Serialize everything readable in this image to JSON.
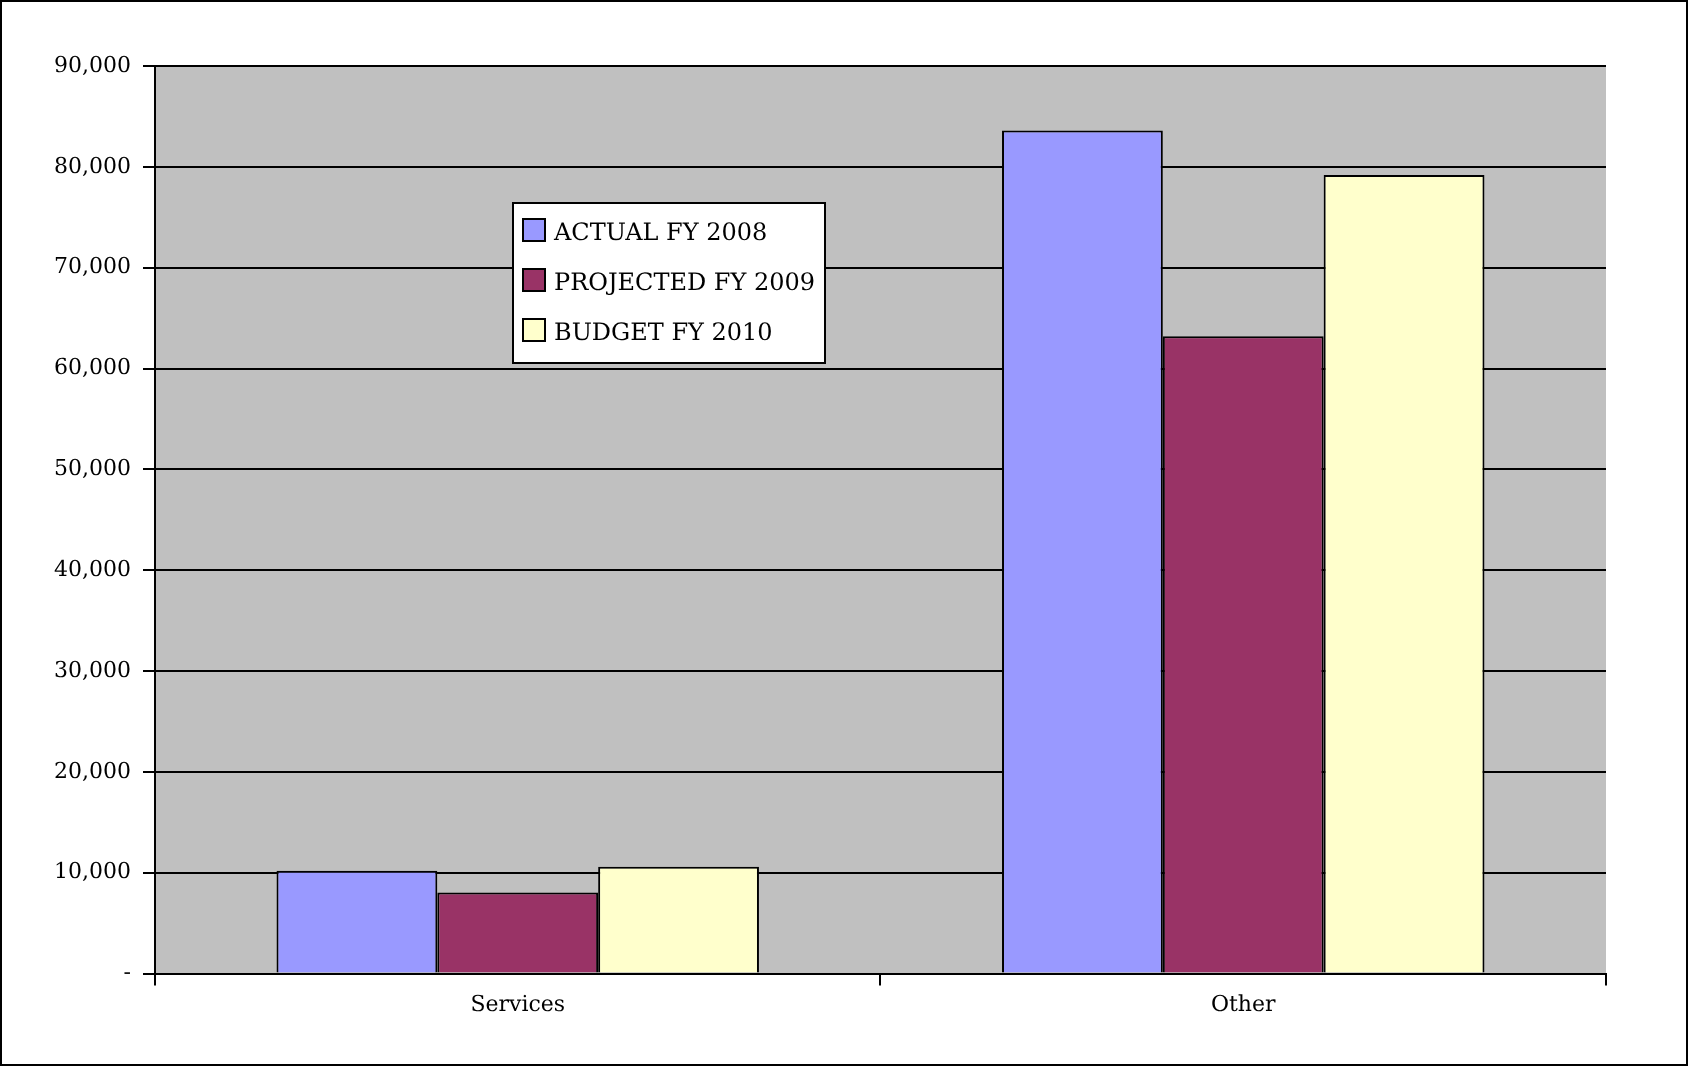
{
  "chart_data": {
    "type": "bar",
    "categories": [
      "Services",
      "Other"
    ],
    "series": [
      {
        "name": "ACTUAL FY 2008",
        "color": "#9999ff",
        "values": [
          10200,
          83600
        ]
      },
      {
        "name": "PROJECTED FY 2009",
        "color": "#993366",
        "values": [
          8050,
          63200
        ]
      },
      {
        "name": "BUDGET FY 2010",
        "color": "#ffffcc",
        "values": [
          10600,
          79200
        ]
      }
    ],
    "ylim": [
      0,
      90000
    ],
    "yticks": [
      {
        "value": 0,
        "label": "-"
      },
      {
        "value": 10000,
        "label": "10,000"
      },
      {
        "value": 20000,
        "label": "20,000"
      },
      {
        "value": 30000,
        "label": "30,000"
      },
      {
        "value": 40000,
        "label": "40,000"
      },
      {
        "value": 50000,
        "label": "50,000"
      },
      {
        "value": 60000,
        "label": "60,000"
      },
      {
        "value": 70000,
        "label": "70,000"
      },
      {
        "value": 80000,
        "label": "80,000"
      },
      {
        "value": 90000,
        "label": "90,000"
      }
    ],
    "grid": "y",
    "legend": "top left"
  }
}
